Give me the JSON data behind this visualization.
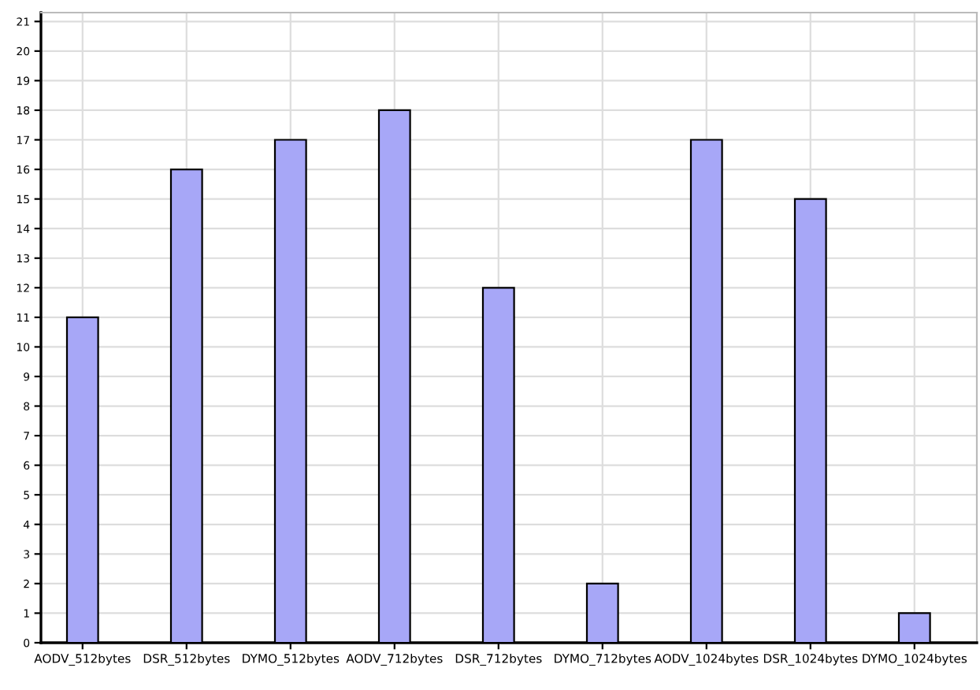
{
  "chart_data": {
    "type": "bar",
    "categories": [
      "AODV_512bytes",
      "DSR_512bytes",
      "DYMO_512bytes",
      "AODV_712bytes",
      "DSR_712bytes",
      "DYMO_712bytes",
      "AODV_1024bytes",
      "DSR_1024bytes",
      "DYMO_1024bytes"
    ],
    "values": [
      11,
      16,
      17,
      18,
      12,
      2,
      17,
      15,
      1
    ],
    "color": "#a7a7f7",
    "ylim": [
      0,
      21.3
    ],
    "yticks": [
      0,
      1,
      2,
      3,
      4,
      5,
      6,
      7,
      8,
      9,
      10,
      11,
      12,
      13,
      14,
      15,
      16,
      17,
      18,
      19,
      20,
      21
    ],
    "grid": true
  }
}
